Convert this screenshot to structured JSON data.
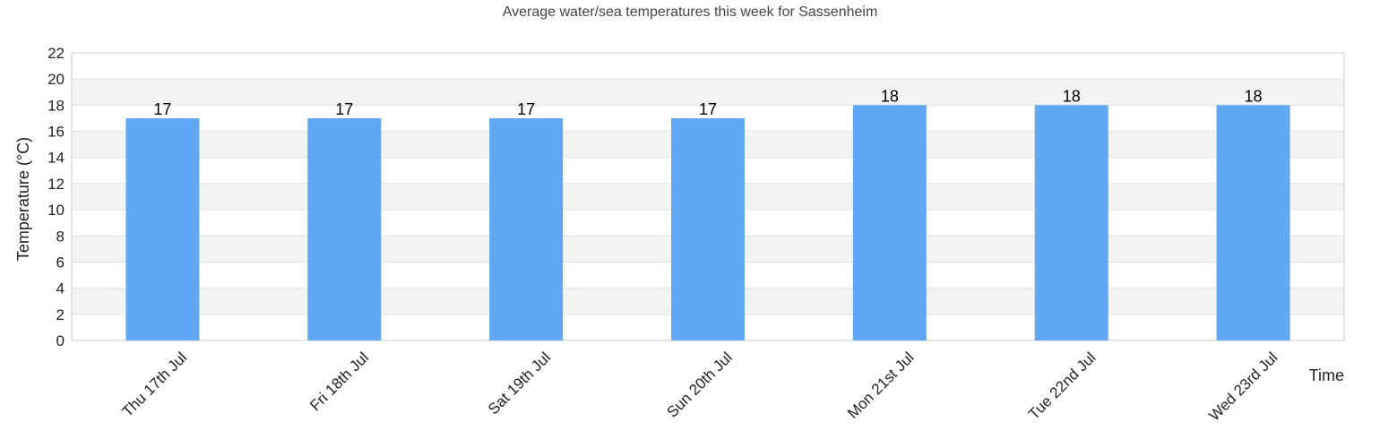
{
  "chart_data": {
    "type": "bar",
    "title": "Average water/sea temperatures this week for Sassenheim",
    "xlabel": "Time",
    "ylabel": "Temperature (°C)",
    "categories": [
      "Thu 17th Jul",
      "Fri 18th Jul",
      "Sat 19th Jul",
      "Sun 20th Jul",
      "Mon 21st Jul",
      "Tue 22nd Jul",
      "Wed 23rd Jul"
    ],
    "values": [
      17,
      17,
      17,
      17,
      18,
      18,
      18
    ],
    "data_labels": [
      "17",
      "17",
      "17",
      "17",
      "18",
      "18",
      "18"
    ],
    "ylim": [
      0,
      22
    ],
    "yticks": [
      "0",
      "2",
      "4",
      "6",
      "8",
      "10",
      "12",
      "14",
      "16",
      "18",
      "20",
      "22"
    ],
    "grid": true,
    "legend": "none",
    "colors": {
      "bar": "#60a7f4",
      "band": "#f3f3f3",
      "gridline": "#e0e0e0"
    }
  }
}
